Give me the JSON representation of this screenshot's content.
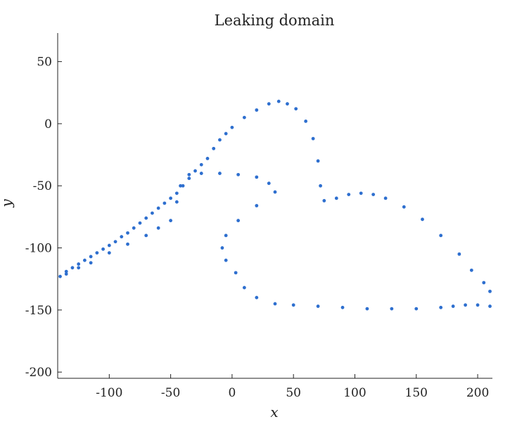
{
  "chart_data": {
    "type": "scatter",
    "title": "Leaking domain",
    "xlabel": "x",
    "ylabel": "y",
    "xlim": [
      -142,
      212
    ],
    "ylim": [
      -205,
      73
    ],
    "xticks": [
      -100,
      -50,
      0,
      50,
      100,
      150,
      200
    ],
    "yticks": [
      50,
      0,
      -50,
      -100,
      -150,
      -200
    ],
    "grid": false,
    "legend": "none",
    "marker_color": "#2e6fcf",
    "point_count_estimate": "approximately 1000 points filling a leaking-domain shape (filled scatter region)",
    "series": [
      {
        "values": [
          [
            -140,
            -123
          ],
          [
            -135,
            -119
          ],
          [
            -130,
            -116
          ],
          [
            -125,
            -113
          ],
          [
            -120,
            -110
          ],
          [
            -115,
            -107
          ],
          [
            -110,
            -104
          ],
          [
            -105,
            -101
          ],
          [
            -100,
            -98
          ],
          [
            -95,
            -95
          ],
          [
            -90,
            -91
          ],
          [
            -85,
            -88
          ],
          [
            -80,
            -84
          ],
          [
            -75,
            -80
          ],
          [
            -70,
            -76
          ],
          [
            -65,
            -72
          ],
          [
            -60,
            -68
          ],
          [
            -55,
            -64
          ],
          [
            -50,
            -60
          ],
          [
            -45,
            -56
          ],
          [
            -40,
            -50
          ],
          [
            -35,
            -44
          ],
          [
            -30,
            -38
          ],
          [
            -25,
            -33
          ],
          [
            -20,
            -28
          ],
          [
            -15,
            -20
          ],
          [
            -10,
            -13
          ],
          [
            -5,
            -8
          ],
          [
            0,
            -3
          ],
          [
            10,
            5
          ],
          [
            20,
            11
          ],
          [
            30,
            16
          ],
          [
            38,
            18
          ],
          [
            45,
            16
          ],
          [
            52,
            12
          ],
          [
            60,
            2
          ],
          [
            66,
            -12
          ],
          [
            70,
            -30
          ],
          [
            72,
            -50
          ],
          [
            75,
            -62
          ],
          [
            85,
            -60
          ],
          [
            95,
            -57
          ],
          [
            105,
            -56
          ],
          [
            115,
            -57
          ],
          [
            125,
            -60
          ],
          [
            140,
            -67
          ],
          [
            155,
            -77
          ],
          [
            170,
            -90
          ],
          [
            185,
            -105
          ],
          [
            195,
            -118
          ],
          [
            205,
            -128
          ],
          [
            210,
            -135
          ],
          [
            210,
            -147
          ],
          [
            200,
            -146
          ],
          [
            190,
            -146
          ],
          [
            180,
            -147
          ],
          [
            170,
            -148
          ],
          [
            150,
            -149
          ],
          [
            130,
            -149
          ],
          [
            110,
            -149
          ],
          [
            90,
            -148
          ],
          [
            70,
            -147
          ],
          [
            50,
            -146
          ],
          [
            35,
            -145
          ],
          [
            20,
            -140
          ],
          [
            10,
            -132
          ],
          [
            3,
            -120
          ],
          [
            -5,
            -110
          ],
          [
            -8,
            -100
          ],
          [
            -5,
            -90
          ],
          [
            5,
            -78
          ],
          [
            20,
            -66
          ],
          [
            35,
            -55
          ],
          [
            30,
            -48
          ],
          [
            20,
            -43
          ],
          [
            5,
            -41
          ],
          [
            -10,
            -40
          ],
          [
            -25,
            -40
          ],
          [
            -35,
            -41
          ],
          [
            -42,
            -50
          ],
          [
            -45,
            -63
          ],
          [
            -50,
            -78
          ],
          [
            -60,
            -84
          ],
          [
            -70,
            -90
          ],
          [
            -85,
            -97
          ],
          [
            -100,
            -104
          ],
          [
            -115,
            -112
          ],
          [
            -125,
            -116
          ],
          [
            -135,
            -121
          ]
        ]
      }
    ]
  }
}
